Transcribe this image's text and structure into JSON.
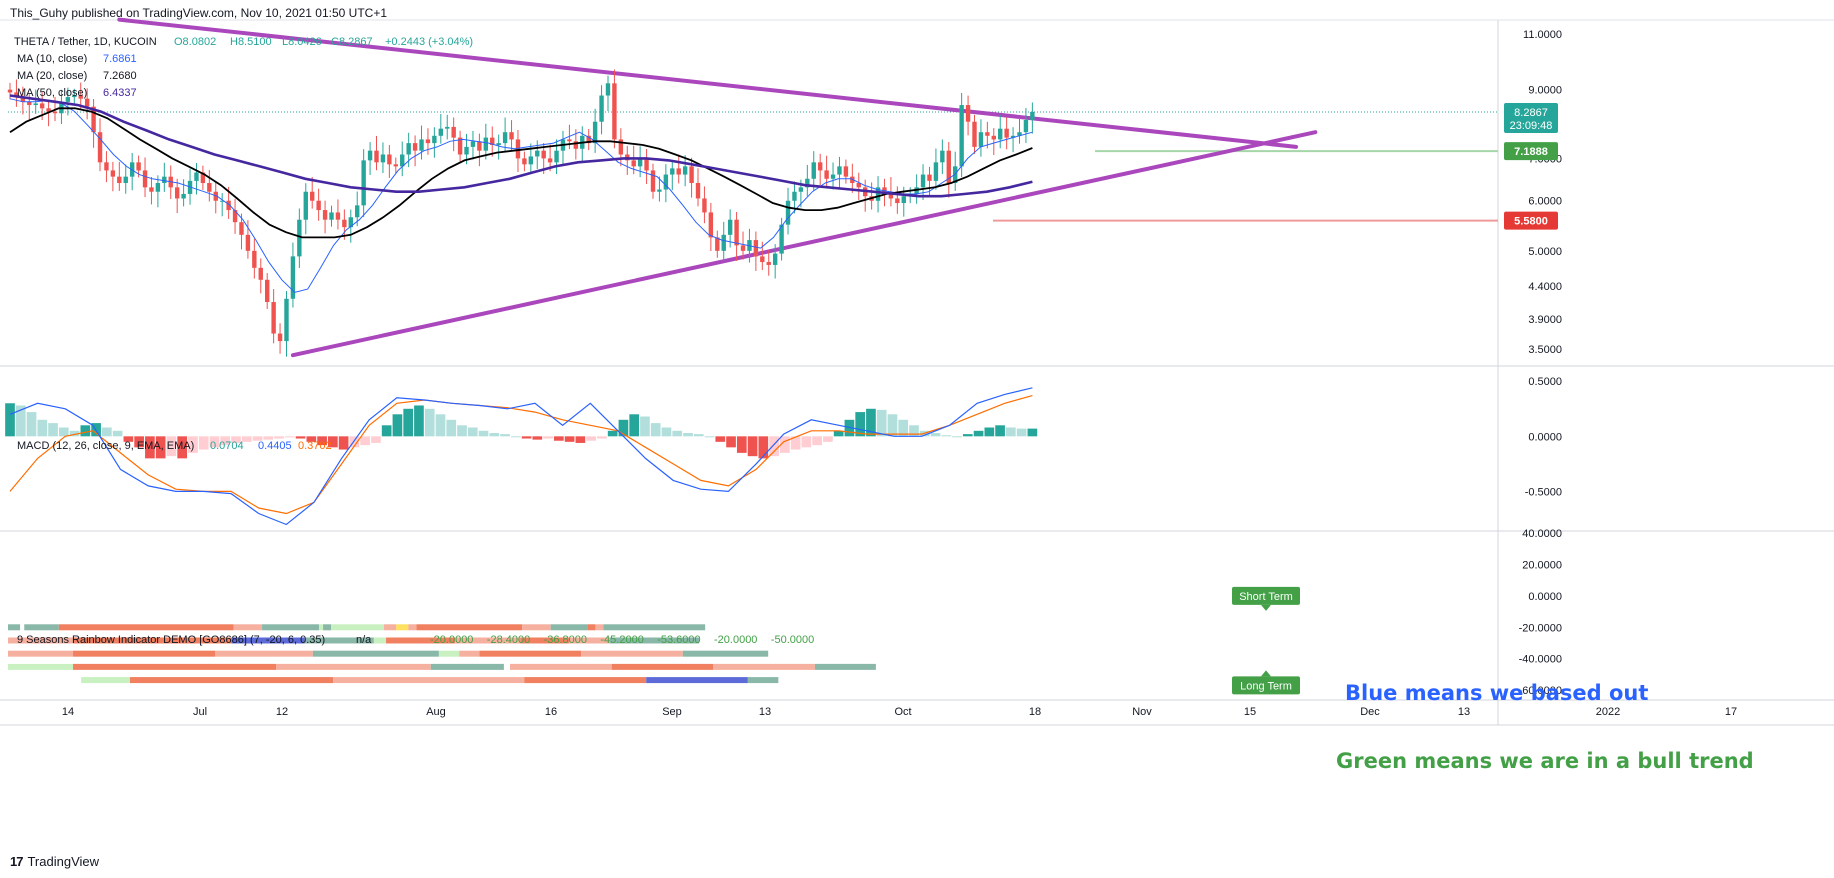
{
  "header": {
    "published_text": "This_Guhy published on TradingView.com, Nov 10, 2021 01:50 UTC+1"
  },
  "footer": {
    "brand": "TradingView",
    "logo_glyph": "17"
  },
  "colors": {
    "up": "#26a69a",
    "up_light": "#b2dfdb",
    "down": "#ef5350",
    "down_light": "#ffcdd2",
    "ma10": "#2962ff",
    "ma20": "#000000",
    "ma50": "#4527a0",
    "triangle": "#ab47bc",
    "macd": "#2962ff",
    "signal": "#ff6d00",
    "support": "#ef9a9a",
    "resistance": "#a5d6a7"
  },
  "chart_data": [
    {
      "type": "candlestick",
      "title": "THETA / Tether, 1D, KUCOIN",
      "ohlc_legend": {
        "open": "O8.0802",
        "high": "H8.5100",
        "low": "L8.0426",
        "close": "C8.2867",
        "change": "+0.2443 (+3.04%)"
      },
      "x_ticks": [
        "14",
        "Jul",
        "12",
        "Aug",
        "16",
        "Sep",
        "13",
        "Oct",
        "18",
        "Nov",
        "15",
        "Dec",
        "13",
        "2022",
        "17"
      ],
      "y_ticks": [
        "11.0000",
        "9.0000",
        "7.0000",
        "6.0000",
        "5.0000",
        "4.4000",
        "3.9000",
        "3.5000"
      ],
      "ylim": [
        3.3,
        11.5
      ],
      "scale": "log",
      "legend": [
        {
          "name": "MA (10, close)",
          "value": "7.6861"
        },
        {
          "name": "MA (20, close)",
          "value": "7.2680"
        },
        {
          "name": "MA (50, close)",
          "value": "6.4337"
        }
      ],
      "last_price": {
        "value": "8.2867",
        "countdown": "23:09:48"
      },
      "horizontal_levels": [
        {
          "name": "resistance",
          "value": "7.1888"
        },
        {
          "name": "support",
          "value": "5.5800"
        }
      ],
      "closes_daily": [
        8.9,
        8.75,
        8.6,
        8.5,
        8.55,
        8.4,
        8.3,
        8.25,
        8.6,
        8.75,
        8.8,
        8.7,
        8.45,
        7.7,
        6.9,
        6.7,
        6.55,
        6.4,
        6.55,
        6.9,
        6.7,
        6.3,
        6.2,
        6.4,
        6.55,
        6.3,
        6.05,
        6.15,
        6.45,
        6.65,
        6.4,
        6.2,
        6.0,
        6.0,
        5.8,
        5.55,
        5.3,
        5.0,
        4.7,
        4.5,
        4.15,
        3.7,
        3.6,
        4.2,
        4.9,
        5.6,
        6.2,
        6.0,
        5.8,
        5.6,
        5.75,
        5.6,
        5.45,
        5.65,
        5.9,
        6.95,
        7.2,
        6.9,
        7.1,
        6.85,
        6.8,
        7.1,
        7.4,
        7.2,
        7.5,
        7.4,
        7.6,
        7.8,
        7.85,
        7.55,
        7.1,
        7.3,
        7.45,
        7.2,
        7.55,
        7.35,
        7.4,
        7.7,
        7.5,
        7.0,
        6.85,
        7.05,
        7.2,
        7.0,
        6.9,
        7.2,
        7.5,
        7.45,
        7.25,
        7.6,
        7.4,
        8.0,
        8.8,
        9.2,
        7.5,
        7.1,
        6.95,
        6.8,
        7.0,
        6.7,
        6.2,
        6.25,
        6.6,
        6.75,
        6.6,
        6.8,
        6.4,
        6.05,
        5.75,
        5.25,
        5.0,
        5.3,
        5.6,
        5.1,
        5.0,
        5.2,
        4.9,
        4.8,
        4.75,
        4.95,
        5.5,
        6.0,
        6.2,
        6.3,
        6.5,
        6.9,
        6.7,
        6.5,
        6.6,
        6.8,
        6.55,
        6.4,
        6.3,
        6.1,
        6.0,
        6.3,
        6.2,
        6.05,
        5.95,
        6.1,
        6.15,
        6.3,
        6.6,
        6.45,
        6.9,
        7.2,
        6.4,
        6.8,
        8.5,
        8.0,
        7.3,
        7.7,
        7.6,
        7.5,
        7.8,
        7.55,
        7.6,
        7.7,
        8.05,
        8.29
      ],
      "ma10": [
        8.7,
        8.6,
        8.6,
        8.65,
        8.55,
        8.3,
        7.9,
        7.5,
        7.1,
        6.8,
        6.6,
        6.5,
        6.45,
        6.4,
        6.3,
        6.2,
        6.1,
        5.9,
        5.6,
        5.2,
        4.8,
        4.5,
        4.3,
        4.35,
        4.7,
        5.1,
        5.4,
        5.6,
        5.9,
        6.3,
        6.7,
        7.0,
        7.2,
        7.3,
        7.45,
        7.5,
        7.45,
        7.4,
        7.3,
        7.25,
        7.3,
        7.35,
        7.4,
        7.55,
        7.7,
        7.5,
        7.2,
        6.9,
        6.75,
        6.65,
        6.55,
        6.25,
        5.9,
        5.55,
        5.3,
        5.2,
        5.15,
        5.1,
        5.05,
        5.25,
        5.6,
        5.9,
        6.2,
        6.4,
        6.5,
        6.5,
        6.35,
        6.25,
        6.2,
        6.15,
        6.15,
        6.2,
        6.4,
        6.6,
        7.0,
        7.3,
        7.4,
        7.5,
        7.6,
        7.7
      ],
      "ma20": [
        7.7,
        8.0,
        8.2,
        8.4,
        8.4,
        8.3,
        8.1,
        7.8,
        7.5,
        7.25,
        7.0,
        6.8,
        6.6,
        6.35,
        6.05,
        5.75,
        5.5,
        5.35,
        5.25,
        5.25,
        5.25,
        5.3,
        5.45,
        5.65,
        5.9,
        6.2,
        6.5,
        6.75,
        6.95,
        7.05,
        7.15,
        7.2,
        7.25,
        7.3,
        7.35,
        7.4,
        7.45,
        7.45,
        7.4,
        7.35,
        7.25,
        7.1,
        6.95,
        6.75,
        6.55,
        6.35,
        6.15,
        5.95,
        5.85,
        5.8,
        5.8,
        5.85,
        5.95,
        6.05,
        6.15,
        6.2,
        6.25,
        6.3,
        6.4,
        6.55,
        6.75,
        6.95,
        7.1,
        7.27
      ],
      "ma50": [
        8.8,
        8.7,
        8.6,
        8.5,
        8.3,
        8.0,
        7.75,
        7.5,
        7.3,
        7.1,
        6.95,
        6.8,
        6.65,
        6.5,
        6.4,
        6.3,
        6.25,
        6.2,
        6.2,
        6.25,
        6.3,
        6.4,
        6.5,
        6.65,
        6.8,
        6.9,
        6.95,
        7.0,
        7.0,
        6.95,
        6.85,
        6.75,
        6.65,
        6.55,
        6.45,
        6.35,
        6.3,
        6.25,
        6.2,
        6.15,
        6.1,
        6.1,
        6.15,
        6.2,
        6.3,
        6.43
      ]
    },
    {
      "type": "bar",
      "title": "MACD (12, 26, close, 9, EMA, EMA)",
      "legend": [
        {
          "name": "Histogram",
          "value": "0.0704"
        },
        {
          "name": "MACD",
          "value": "0.4405"
        },
        {
          "name": "Signal",
          "value": "0.3702"
        }
      ],
      "y_ticks": [
        "0.5000",
        "0.0000",
        "-0.5000"
      ],
      "ylim": [
        -0.85,
        0.62
      ],
      "macd_line": [
        0.2,
        0.3,
        0.25,
        0.1,
        -0.3,
        -0.45,
        -0.5,
        -0.5,
        -0.52,
        -0.7,
        -0.8,
        -0.6,
        -0.2,
        0.15,
        0.35,
        0.33,
        0.3,
        0.28,
        0.25,
        0.3,
        0.1,
        0.3,
        0.05,
        -0.2,
        -0.4,
        -0.48,
        -0.5,
        -0.25,
        0.02,
        0.15,
        0.1,
        0.05,
        0.0,
        0.0,
        0.1,
        0.3,
        0.38,
        0.44
      ],
      "signal_line": [
        -0.5,
        -0.2,
        0.0,
        0.05,
        -0.15,
        -0.35,
        -0.48,
        -0.5,
        -0.5,
        -0.65,
        -0.7,
        -0.6,
        -0.25,
        0.1,
        0.3,
        0.33,
        0.3,
        0.28,
        0.26,
        0.22,
        0.15,
        0.1,
        0.05,
        -0.1,
        -0.25,
        -0.4,
        -0.45,
        -0.3,
        -0.05,
        0.05,
        0.05,
        0.02,
        0.02,
        0.02,
        0.1,
        0.2,
        0.3,
        0.37
      ],
      "histogram": [
        0.3,
        0.28,
        0.22,
        0.15,
        0.12,
        0.08,
        0.05,
        0.1,
        0.12,
        0.08,
        0.05,
        -0.05,
        -0.1,
        -0.2,
        -0.2,
        -0.18,
        -0.2,
        -0.15,
        -0.12,
        -0.1,
        -0.08,
        -0.06,
        -0.05,
        -0.04,
        -0.03,
        -0.02,
        -0.01,
        -0.02,
        -0.05,
        -0.08,
        -0.1,
        -0.12,
        -0.1,
        -0.08,
        -0.06,
        0.1,
        0.2,
        0.25,
        0.28,
        0.25,
        0.2,
        0.15,
        0.1,
        0.08,
        0.05,
        0.03,
        0.02,
        0.0,
        -0.02,
        -0.03,
        -0.02,
        -0.04,
        -0.05,
        -0.06,
        -0.04,
        -0.02,
        0.05,
        0.15,
        0.2,
        0.18,
        0.12,
        0.08,
        0.05,
        0.03,
        0.02,
        0.0,
        -0.05,
        -0.1,
        -0.15,
        -0.18,
        -0.2,
        -0.18,
        -0.15,
        -0.12,
        -0.1,
        -0.08,
        -0.05,
        0.05,
        0.15,
        0.22,
        0.25,
        0.24,
        0.2,
        0.15,
        0.1,
        0.05,
        0.03,
        0.01,
        0.0,
        0.02,
        0.05,
        0.08,
        0.1,
        0.08,
        0.07,
        0.07
      ]
    },
    {
      "type": "heatmap",
      "title": "9 Seasons Rainbow Indicator DEMO [GO8686] (7, -20, 6, 0.35)",
      "na_label": "n/a",
      "legend": [
        "-20.0000",
        "-28.4000",
        "-36.8000",
        "-45.2000",
        "-53.6000",
        "-20.0000",
        "-50.0000"
      ],
      "legend_colors": [
        "#43a047",
        "#43a047",
        "#43a047",
        "#43a047",
        "#43a047",
        "#43a047",
        "#43a047"
      ],
      "y_ticks": [
        "40.0000",
        "20.0000",
        "0.0000",
        "-20.0000",
        "-40.0000",
        "-60.0000"
      ],
      "ylim": [
        -65,
        40
      ],
      "rows_values": [
        -20,
        -28.4,
        -36.8,
        -45.2,
        -53.6
      ],
      "labels": {
        "short_term": "Short Term",
        "long_term": "Long Term"
      },
      "annotations": [
        "Blue means we based out",
        "Green means we are in a bull trend"
      ],
      "bands": [
        [
          [
            "#8ab8a8",
            0.3
          ],
          [
            "#ffffff",
            0.1
          ],
          [
            "#8ab8a8",
            0.85
          ],
          [
            "#f08060",
            4.3
          ],
          [
            "#f6b0a0",
            0.7
          ],
          [
            "#8ab8a8",
            1.4
          ],
          [
            "#c8f0c0",
            0.1
          ],
          [
            "#8ab8a8",
            0.2
          ],
          [
            "#c8f0c0",
            1.3
          ],
          [
            "#f6b0a0",
            0.3
          ],
          [
            "#ffe060",
            0.3
          ],
          [
            "#f6b0a0",
            0.2
          ],
          [
            "#f08060",
            2.6
          ],
          [
            "#f6b0a0",
            0.7
          ],
          [
            "#8ab8a8",
            0.9
          ],
          [
            "#f08060",
            0.2
          ],
          [
            "#f6b0a0",
            0.2
          ],
          [
            "#8ab8a8",
            2.5
          ]
        ],
        [
          [
            "#f6b0a0",
            1.6
          ],
          [
            "#f08060",
            3.9
          ],
          [
            "#5c6bd8",
            1.8
          ],
          [
            "#8ab8a8",
            1.7
          ],
          [
            "#c8f0c0",
            0.3
          ],
          [
            "#f08060",
            1.7
          ],
          [
            "#f6b0a0",
            1.6
          ],
          [
            "#f08060",
            1.2
          ],
          [
            "#f6b0a0",
            1.0
          ],
          [
            "#8ab8a8",
            2.2
          ]
        ],
        [
          [
            "#f6b0a0",
            1.6
          ],
          [
            "#f08060",
            3.5
          ],
          [
            "#f6b0a0",
            2.4
          ],
          [
            "#8ab8a8",
            3.1
          ],
          [
            "#c8f0c0",
            0.5
          ],
          [
            "#f6b0a0",
            0.5
          ],
          [
            "#f08060",
            2.5
          ],
          [
            "#f6b0a0",
            2.5
          ],
          [
            "#8ab8a8",
            2.1
          ]
        ],
        [
          [
            "#c8f0c0",
            1.6
          ],
          [
            "#f08060",
            5.0
          ],
          [
            "#f6b0a0",
            3.8
          ],
          [
            "#8ab8a8",
            1.8
          ],
          [
            "#ffffff",
            0.15
          ],
          [
            "#f6b0a0",
            2.5
          ],
          [
            "#f08060",
            2.5
          ],
          [
            "#f6b0a0",
            2.5
          ],
          [
            "#8ab8a8",
            1.5
          ]
        ],
        [
          [
            "#ffffff",
            1.8
          ],
          [
            "#c8f0c0",
            1.2
          ],
          [
            "#f08060",
            5.0
          ],
          [
            "#f6b0a0",
            4.7
          ],
          [
            "#f08060",
            3.0
          ],
          [
            "#5c6bd8",
            2.5
          ],
          [
            "#8ab8a8",
            0.75
          ]
        ]
      ]
    }
  ]
}
